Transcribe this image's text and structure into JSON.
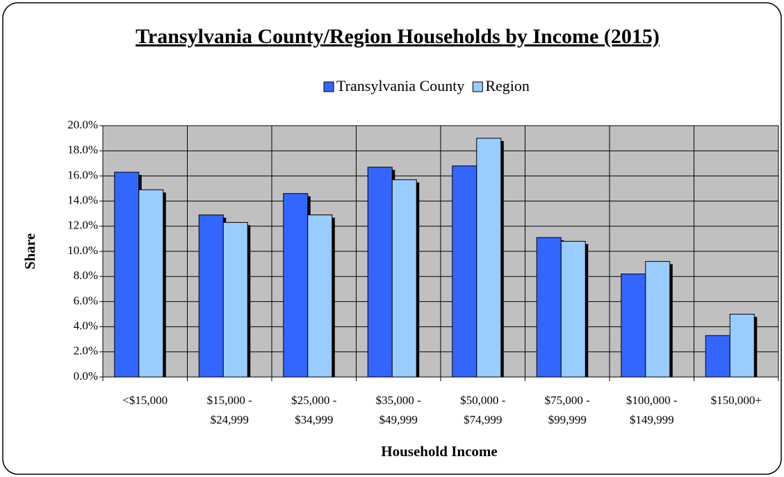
{
  "chart_data": {
    "type": "bar",
    "title": "Transylvania County/Region Households by Income (2015)",
    "x_label": "Household Income",
    "y_label": "Share",
    "categories": [
      "<$15,000",
      "$15,000 -\n$24,999",
      "$25,000 -\n$34,999",
      "$35,000 -\n$49,999",
      "$50,000 -\n$74,999",
      "$75,000 -\n$99,999",
      "$100,000 -\n$149,999",
      "$150,000+"
    ],
    "series": [
      {
        "name": "Transylvania County",
        "color": "#3366ff",
        "values": [
          16.3,
          12.9,
          14.6,
          16.7,
          16.8,
          11.1,
          8.2,
          3.3
        ]
      },
      {
        "name": "Region",
        "color": "#99ccff",
        "values": [
          14.9,
          12.3,
          12.9,
          15.7,
          19.0,
          10.8,
          9.2,
          5.0
        ]
      }
    ],
    "ylim": [
      0,
      20
    ],
    "yticks": [
      {
        "value": 0,
        "label": "0.0%"
      },
      {
        "value": 2,
        "label": "2.0%"
      },
      {
        "value": 4,
        "label": "4.0%"
      },
      {
        "value": 6,
        "label": "6.0%"
      },
      {
        "value": 8,
        "label": "8.0%"
      },
      {
        "value": 10,
        "label": "10.0%"
      },
      {
        "value": 12,
        "label": "12.0%"
      },
      {
        "value": 14,
        "label": "14.0%"
      },
      {
        "value": 16,
        "label": "16.0%"
      },
      {
        "value": 18,
        "label": "18.0%"
      },
      {
        "value": 20,
        "label": "20.0%"
      }
    ],
    "grid": true,
    "legend": "top"
  }
}
